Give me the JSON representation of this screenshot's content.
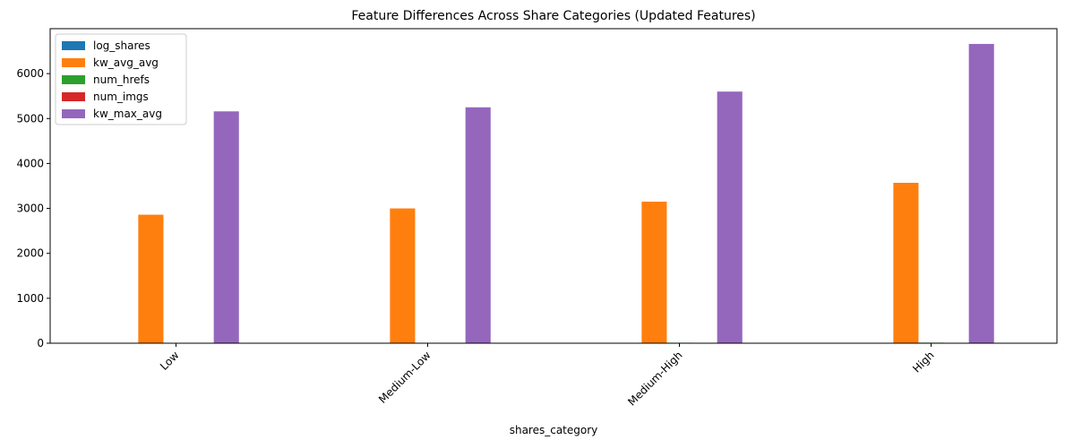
{
  "chart_data": {
    "type": "bar",
    "title": "Feature Differences Across Share Categories (Updated Features)",
    "xlabel": "shares_category",
    "ylabel": "",
    "categories": [
      "Low",
      "Medium-Low",
      "Medium-High",
      "High"
    ],
    "ylim": [
      0,
      7000
    ],
    "yticks": [
      0,
      1000,
      2000,
      3000,
      4000,
      5000,
      6000
    ],
    "grid": false,
    "legend": "top-left",
    "series": [
      {
        "name": "log_shares",
        "color": "#1f77b4",
        "values": [
          6.9,
          7.4,
          7.9,
          8.9
        ]
      },
      {
        "name": "kw_avg_avg",
        "color": "#ff7f0e",
        "values": [
          2860,
          3000,
          3150,
          3570
        ]
      },
      {
        "name": "num_hrefs",
        "color": "#2ca02c",
        "values": [
          9.5,
          10.5,
          11.2,
          12.5
        ]
      },
      {
        "name": "num_imgs",
        "color": "#d62728",
        "values": [
          4.0,
          4.3,
          4.6,
          5.2
        ]
      },
      {
        "name": "kw_max_avg",
        "color": "#9467bd",
        "values": [
          5160,
          5250,
          5600,
          6660
        ]
      }
    ]
  }
}
